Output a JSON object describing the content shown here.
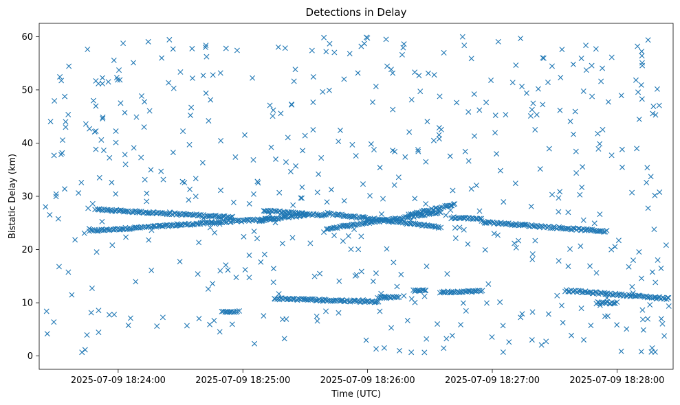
{
  "chart_data": {
    "type": "scatter",
    "title": "Detections in Delay",
    "xlabel": "Time (UTC)",
    "ylabel": "Bistatic Delay (km)",
    "marker": "x",
    "color": "#1f77b4",
    "xlim": [
      "2025-07-09 18:23:22",
      "2025-07-09 18:28:27"
    ],
    "ylim": [
      -2.5,
      62.5
    ],
    "x_ticks": [
      "2025-07-09 18:24:00",
      "2025-07-09 18:25:00",
      "2025-07-09 18:26:00",
      "2025-07-09 18:27:00",
      "2025-07-09 18:28:00"
    ],
    "y_ticks": [
      0,
      10,
      20,
      30,
      40,
      50,
      60
    ],
    "grid": false,
    "legend": "none",
    "structured_tracks": [
      {
        "start": "2025-07-09 18:23:46",
        "end": "2025-07-09 18:25:15",
        "delay_start": 23.5,
        "delay_end": 25.8
      },
      {
        "start": "2025-07-09 18:23:50",
        "end": "2025-07-09 18:24:55",
        "delay_start": 27.5,
        "delay_end": 26.1
      },
      {
        "start": "2025-07-09 18:25:08",
        "end": "2025-07-09 18:25:30",
        "delay_start": 25.5,
        "delay_end": 26.5
      },
      {
        "start": "2025-07-09 18:25:10",
        "end": "2025-07-09 18:25:40",
        "delay_start": 27.3,
        "delay_end": 26.4
      },
      {
        "start": "2025-07-09 18:25:40",
        "end": "2025-07-09 18:26:35",
        "delay_start": 23.9,
        "delay_end": 27.0
      },
      {
        "start": "2025-07-09 18:25:40",
        "end": "2025-07-09 18:26:35",
        "delay_start": 26.8,
        "delay_end": 24.2
      },
      {
        "start": "2025-07-09 18:26:20",
        "end": "2025-07-09 18:26:42",
        "delay_start": 26.5,
        "delay_end": 28.5
      },
      {
        "start": "2025-07-09 18:26:40",
        "end": "2025-07-09 18:26:55",
        "delay_start": 26.0,
        "delay_end": 25.8
      },
      {
        "start": "2025-07-09 18:26:55",
        "end": "2025-07-09 18:27:55",
        "delay_start": 25.2,
        "delay_end": 23.4
      },
      {
        "start": "2025-07-09 18:26:35",
        "end": "2025-07-09 18:26:55",
        "delay_start": 12.0,
        "delay_end": 12.2
      },
      {
        "start": "2025-07-09 18:25:15",
        "end": "2025-07-09 18:26:05",
        "delay_start": 10.8,
        "delay_end": 10.2
      },
      {
        "start": "2025-07-09 18:27:35",
        "end": "2025-07-09 18:28:25",
        "delay_start": 12.3,
        "delay_end": 10.8
      },
      {
        "start": "2025-07-09 18:27:50",
        "end": "2025-07-09 18:28:00",
        "delay_start": 10.0,
        "delay_end": 10.0
      },
      {
        "start": "2025-07-09 18:24:50",
        "end": "2025-07-09 18:24:58",
        "delay_start": 8.3,
        "delay_end": 8.3
      },
      {
        "start": "2025-07-09 18:26:05",
        "end": "2025-07-09 18:26:15",
        "delay_start": 11.0,
        "delay_end": 11.0
      },
      {
        "start": "2025-07-09 18:26:22",
        "end": "2025-07-09 18:26:28",
        "delay_start": 12.3,
        "delay_end": 12.3
      }
    ],
    "background_points": {
      "count": 520,
      "delay_range": [
        0.5,
        60
      ],
      "time_range": [
        "2025-07-09 18:23:25",
        "2025-07-09 18:28:25"
      ],
      "distribution": "uniform"
    }
  }
}
